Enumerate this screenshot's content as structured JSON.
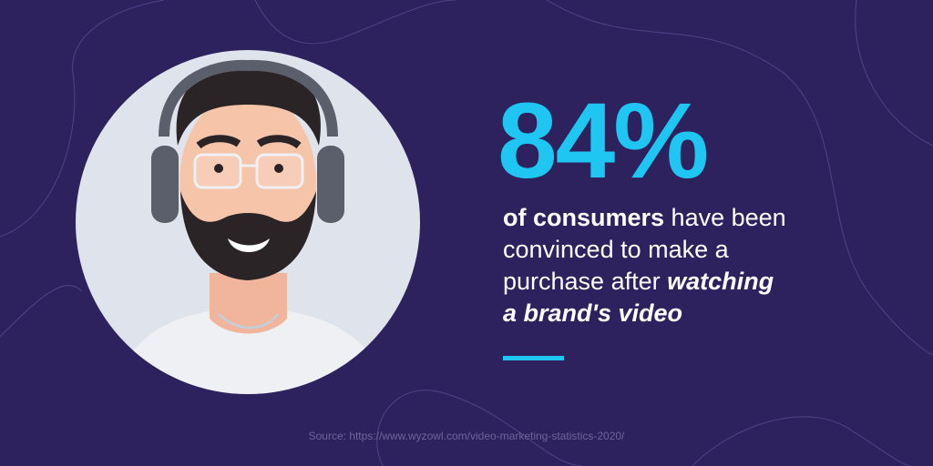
{
  "stat": "84%",
  "statement": {
    "lines": [
      [
        "of consumers",
        " have been"
      ],
      [
        "convinced to make a"
      ],
      [
        "purchase after ",
        "watching"
      ],
      [
        "a brand's video"
      ]
    ]
  },
  "source": "Source: https://www.wyzowl.com/video-marketing-statistics-2020/"
}
